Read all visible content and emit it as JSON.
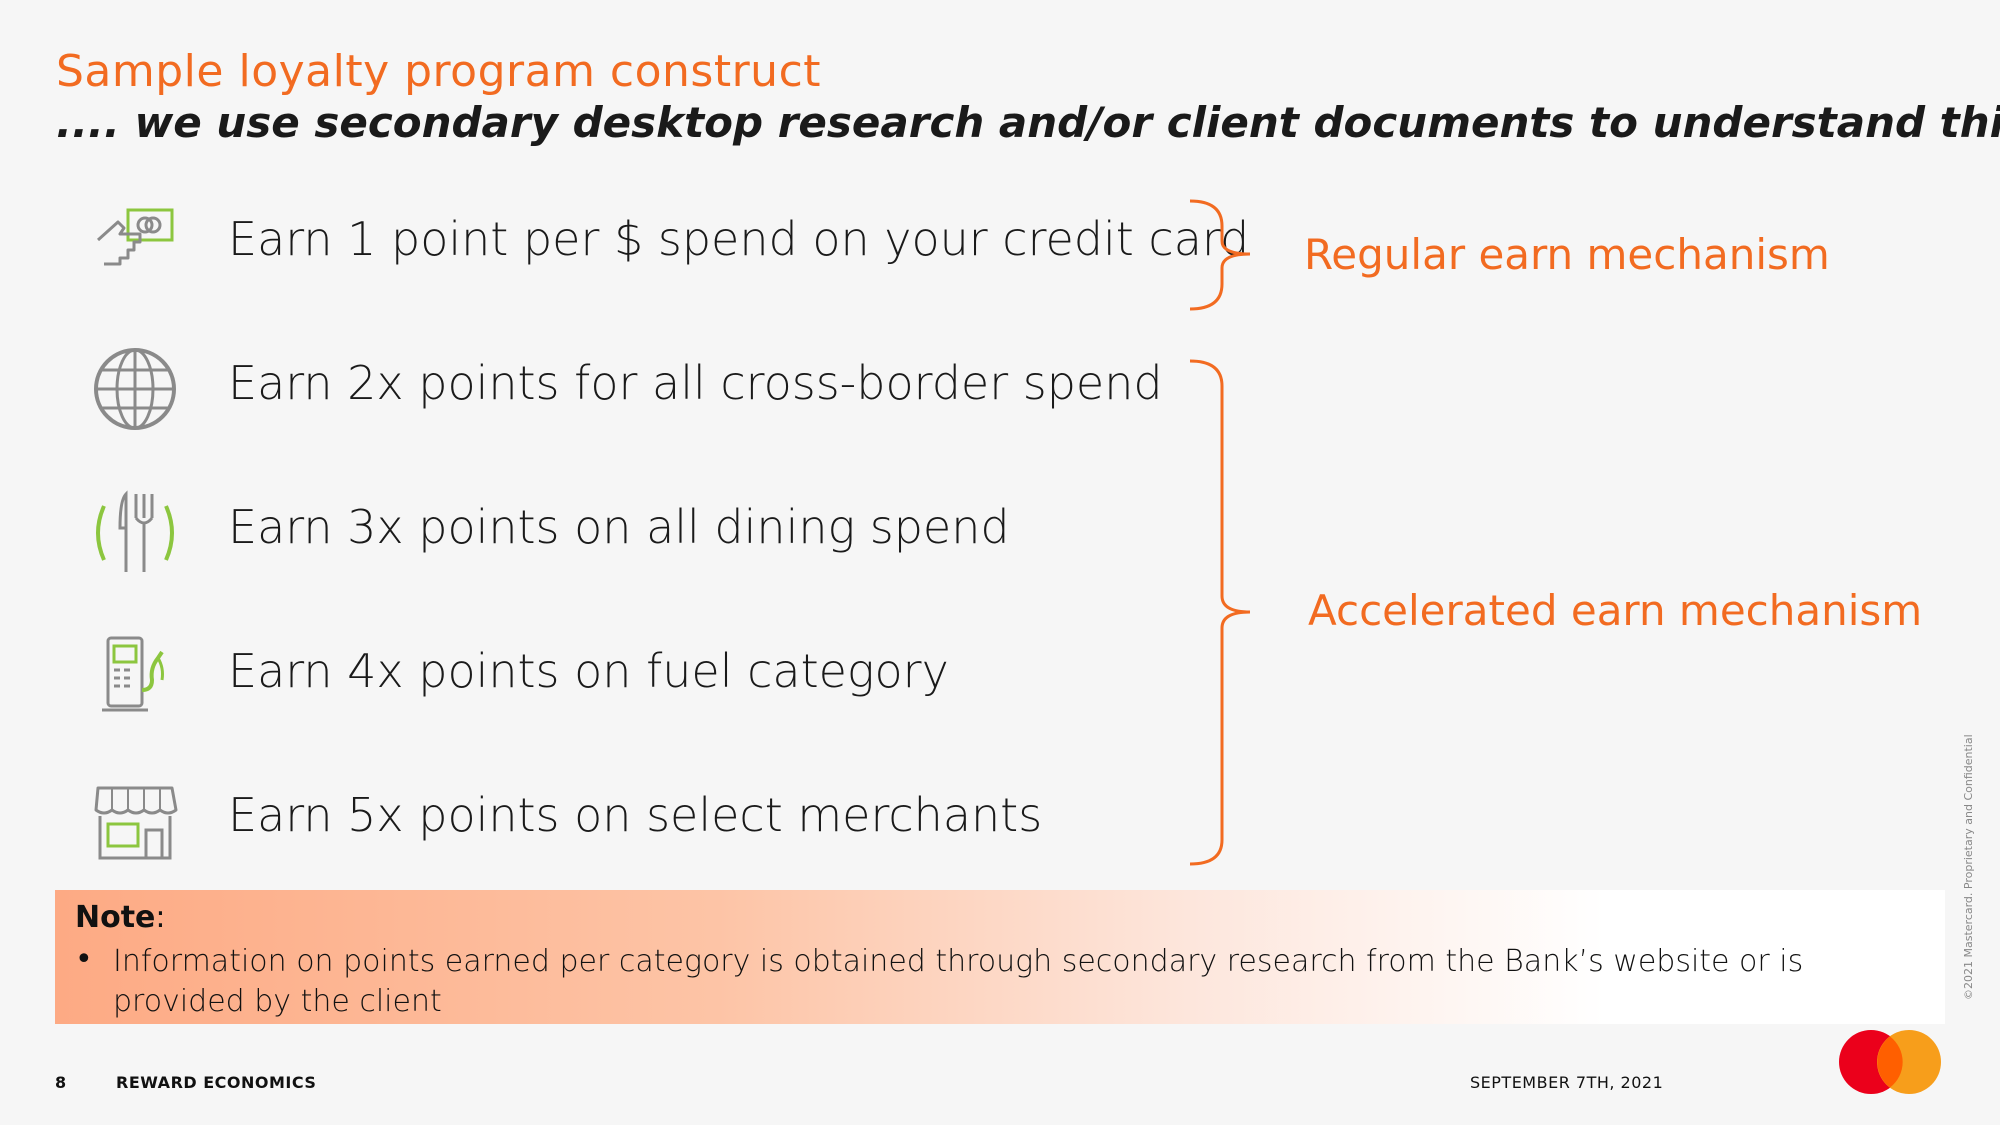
{
  "header": {
    "title": "Sample loyalty program construct",
    "subtitle": ".... we use secondary desktop research and/or client documents to understand this"
  },
  "earn_items": [
    {
      "label": "Earn 1 point per $ spend on your credit card",
      "icon": "cash-hand-icon"
    },
    {
      "label": "Earn 2x points for all cross-border spend",
      "icon": "globe-icon"
    },
    {
      "label": "Earn 3x points on all dining spend",
      "icon": "fork-knife-icon"
    },
    {
      "label": "Earn 4x points on fuel category",
      "icon": "fuel-pump-icon"
    },
    {
      "label": "Earn 5x points on select merchants",
      "icon": "storefront-icon"
    }
  ],
  "mechanisms": {
    "regular": "Regular earn mechanism",
    "accelerated": "Accelerated earn mechanism"
  },
  "note": {
    "title": "Note",
    "title_suffix": ":",
    "bullet": "•",
    "text": "Information on points earned per category is obtained through secondary research from the Bank’s website or is provided by the client"
  },
  "footer": {
    "page_number": "8",
    "section": "REWARD ECONOMICS",
    "date": "SEPTEMBER 7TH, 2021",
    "confidential": "©2021 Mastercard. Proprietary and Confidential"
  },
  "colors": {
    "accent": "#f26b21",
    "icon_gray": "#8a8a8a",
    "icon_green": "#8cc63f",
    "logo_red": "#eb001b",
    "logo_yellow": "#f79e1b"
  }
}
